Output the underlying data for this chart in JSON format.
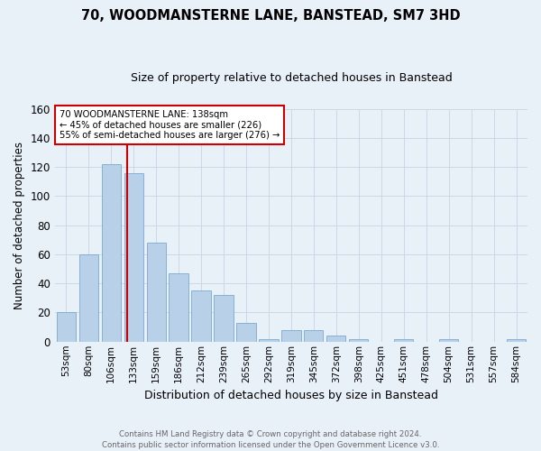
{
  "title": "70, WOODMANSTERNE LANE, BANSTEAD, SM7 3HD",
  "subtitle": "Size of property relative to detached houses in Banstead",
  "xlabel": "Distribution of detached houses by size in Banstead",
  "ylabel": "Number of detached properties",
  "categories": [
    "53sqm",
    "80sqm",
    "106sqm",
    "133sqm",
    "159sqm",
    "186sqm",
    "212sqm",
    "239sqm",
    "265sqm",
    "292sqm",
    "319sqm",
    "345sqm",
    "372sqm",
    "398sqm",
    "425sqm",
    "451sqm",
    "478sqm",
    "504sqm",
    "531sqm",
    "557sqm",
    "584sqm"
  ],
  "values": [
    20,
    60,
    122,
    116,
    68,
    47,
    35,
    32,
    13,
    2,
    8,
    8,
    4,
    2,
    0,
    2,
    0,
    2,
    0,
    0,
    2
  ],
  "bar_color": "#b8d0e8",
  "bar_edge_color": "#7aaad0",
  "grid_color": "#c5d5e5",
  "background_color": "#e8f0f8",
  "annotation_box_color": "#ffffff",
  "annotation_border_color": "#cc0000",
  "property_line_color": "#cc0000",
  "property_value": 138,
  "annotation_line1": "70 WOODMANSTERNE LANE: 138sqm",
  "annotation_line2": "← 45% of detached houses are smaller (226)",
  "annotation_line3": "55% of semi-detached houses are larger (276) →",
  "ylim": [
    0,
    160
  ],
  "yticks": [
    0,
    20,
    40,
    60,
    80,
    100,
    120,
    140,
    160
  ],
  "footer_line1": "Contains HM Land Registry data © Crown copyright and database right 2024.",
  "footer_line2": "Contains public sector information licensed under the Open Government Licence v3.0."
}
